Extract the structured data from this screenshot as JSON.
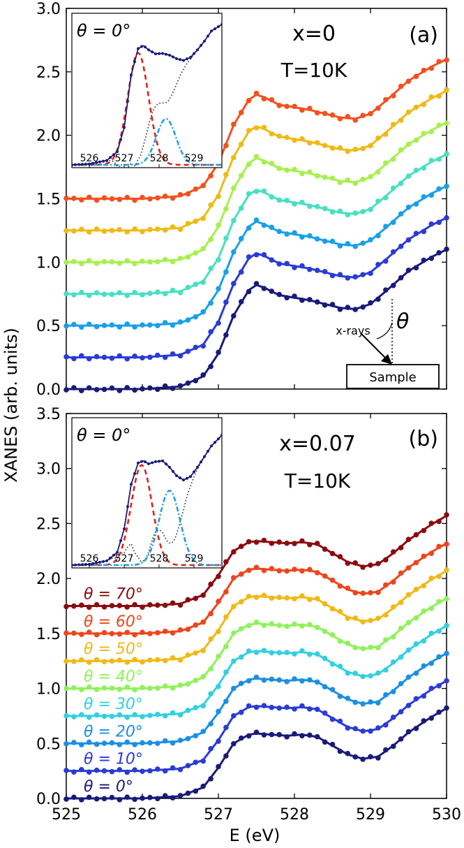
{
  "figure": {
    "xlabel": "E (eV)",
    "ylabel": "XANES (arb. units)",
    "xticks": [
      "525",
      "526",
      "527",
      "528",
      "529",
      "530"
    ]
  },
  "chart_data": [
    {
      "type": "line",
      "panel": "(a)",
      "annotations": [
        "x=0",
        "T=10K"
      ],
      "geometry_labels": {
        "xrays": "x-rays",
        "theta": "θ",
        "sample": "Sample"
      },
      "xlim": [
        525,
        530
      ],
      "ylim": [
        0,
        3.0
      ],
      "yticks": [
        "0.0",
        "0.5",
        "1.0",
        "1.5",
        "2.0",
        "2.5",
        "3.0"
      ],
      "grid": false,
      "series": [
        {
          "offset": 0.0,
          "color": "#1a1a7a"
        },
        {
          "offset": 0.25,
          "color": "#2b3bd6"
        },
        {
          "offset": 0.5,
          "color": "#18a0e8"
        },
        {
          "offset": 0.75,
          "color": "#47e0c0"
        },
        {
          "offset": 1.0,
          "color": "#a6f04c"
        },
        {
          "offset": 1.25,
          "color": "#f0b914"
        },
        {
          "offset": 1.5,
          "color": "#f3501e"
        }
      ],
      "base_curve": {
        "x": [
          525.0,
          526.0,
          526.5,
          526.8,
          527.0,
          527.2,
          527.4,
          527.5,
          527.6,
          527.8,
          528.0,
          528.2,
          528.4,
          528.6,
          528.8,
          529.0,
          529.2,
          529.5,
          529.8,
          530.0
        ],
        "y": [
          0.0,
          0.0,
          0.02,
          0.1,
          0.28,
          0.58,
          0.78,
          0.82,
          0.8,
          0.74,
          0.72,
          0.7,
          0.67,
          0.64,
          0.63,
          0.67,
          0.77,
          0.93,
          1.04,
          1.1
        ]
      },
      "inset": {
        "title": "θ = 0°",
        "xlim": [
          525.5,
          529.8
        ],
        "ylim": [
          0,
          3.2
        ],
        "xticks": [
          "526",
          "527",
          "528",
          "529"
        ],
        "fit_peaks": [
          {
            "center": 527.4,
            "height": 2.55,
            "width": 0.3,
            "color": "#e0221c",
            "dash": "dashed"
          },
          {
            "center": 528.2,
            "height": 1.05,
            "width": 0.28,
            "color": "#1fa1e0",
            "dash": "dashdot"
          }
        ],
        "background": {
          "color": "#222222",
          "dash": "dotted"
        },
        "data": {
          "x": [
            525.5,
            526.0,
            526.5,
            526.8,
            527.0,
            527.2,
            527.4,
            527.55,
            527.7,
            527.9,
            528.1,
            528.3,
            528.5,
            528.7,
            528.9,
            529.1,
            529.3,
            529.5,
            529.8
          ],
          "y": [
            0.0,
            0.02,
            0.1,
            0.3,
            0.85,
            2.05,
            2.65,
            2.72,
            2.62,
            2.53,
            2.54,
            2.5,
            2.42,
            2.38,
            2.45,
            2.62,
            2.82,
            3.05,
            3.2
          ]
        }
      }
    },
    {
      "type": "line",
      "panel": "(b)",
      "annotations": [
        "x=0.07",
        "T=10K"
      ],
      "xlim": [
        525,
        530
      ],
      "ylim": [
        0,
        3.5
      ],
      "yticks": [
        "0.0",
        "0.5",
        "1.0",
        "1.5",
        "2.0",
        "2.5",
        "3.0",
        "3.5"
      ],
      "grid": false,
      "series": [
        {
          "name": "θ = 0°",
          "offset": 0.0,
          "color": "#1a1a7a"
        },
        {
          "name": "θ = 10°",
          "offset": 0.25,
          "color": "#2b3bd6"
        },
        {
          "name": "θ = 20°",
          "offset": 0.5,
          "color": "#1c8fe4"
        },
        {
          "name": "θ = 30°",
          "offset": 0.75,
          "color": "#32d0e0"
        },
        {
          "name": "θ = 40°",
          "offset": 1.0,
          "color": "#8ef25a"
        },
        {
          "name": "θ = 50°",
          "offset": 1.25,
          "color": "#f0b914"
        },
        {
          "name": "θ = 60°",
          "offset": 1.5,
          "color": "#f0441a"
        },
        {
          "name": "θ = 70°",
          "offset": 1.75,
          "color": "#8a0c10"
        }
      ],
      "base_curve": {
        "x": [
          525.0,
          526.0,
          526.5,
          526.8,
          527.0,
          527.2,
          527.4,
          527.5,
          527.7,
          527.9,
          528.1,
          528.3,
          528.5,
          528.7,
          528.9,
          529.1,
          529.3,
          529.5,
          529.8,
          530.0
        ],
        "y": [
          0.0,
          0.0,
          0.02,
          0.1,
          0.28,
          0.5,
          0.58,
          0.59,
          0.58,
          0.57,
          0.58,
          0.56,
          0.48,
          0.4,
          0.36,
          0.38,
          0.48,
          0.6,
          0.74,
          0.82
        ]
      },
      "inset": {
        "title": "θ = 0°",
        "xlim": [
          525.5,
          529.8
        ],
        "ylim": [
          0,
          3.2
        ],
        "xticks": [
          "526",
          "527",
          "528",
          "529"
        ],
        "fit_peaks": [
          {
            "center": 527.5,
            "height": 2.35,
            "width": 0.3,
            "color": "#e0221c",
            "dash": "dashed"
          },
          {
            "center": 528.3,
            "height": 1.75,
            "width": 0.3,
            "color": "#1fa1e0",
            "dash": "dashdot"
          }
        ],
        "background": {
          "color": "#222222",
          "dash": "dotted"
        },
        "data": {
          "x": [
            525.5,
            526.0,
            526.5,
            526.8,
            527.0,
            527.2,
            527.4,
            527.55,
            527.7,
            527.9,
            528.1,
            528.3,
            528.5,
            528.7,
            528.9,
            529.1,
            529.3,
            529.5,
            529.8
          ],
          "y": [
            0.0,
            0.02,
            0.1,
            0.3,
            0.85,
            1.9,
            2.4,
            2.45,
            2.38,
            2.43,
            2.45,
            2.3,
            2.1,
            2.0,
            2.08,
            2.3,
            2.55,
            2.8,
            3.05
          ]
        }
      }
    }
  ]
}
